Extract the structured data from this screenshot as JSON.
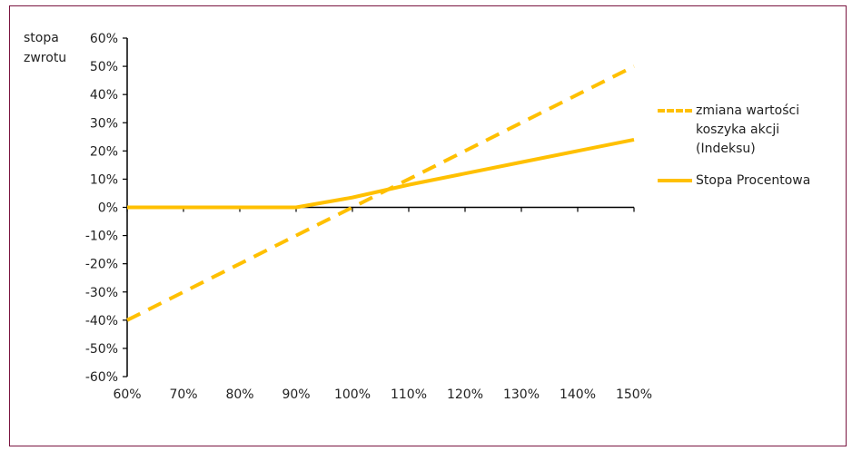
{
  "chart_data": {
    "type": "line",
    "ylabel": "stopa zwrotu",
    "ylabel_lines": [
      "stopa",
      "zwrotu"
    ],
    "xlabel": "",
    "x": [
      0.6,
      0.7,
      0.8,
      0.9,
      1.0,
      1.1,
      1.2,
      1.3,
      1.4,
      1.5
    ],
    "x_tick_labels": [
      "60%",
      "70%",
      "80%",
      "90%",
      "100%",
      "110%",
      "120%",
      "130%",
      "140%",
      "150%"
    ],
    "y_tick_labels": [
      "60%",
      "50%",
      "40%",
      "30%",
      "20%",
      "10%",
      "0%",
      "-10%",
      "-20%",
      "-30%",
      "-40%",
      "-50%",
      "-60%"
    ],
    "y_ticks": [
      0.6,
      0.5,
      0.4,
      0.3,
      0.2,
      0.1,
      0.0,
      -0.1,
      -0.2,
      -0.3,
      -0.4,
      -0.5,
      -0.6
    ],
    "xlim": [
      0.6,
      1.5
    ],
    "ylim": [
      -0.6,
      0.6
    ],
    "grid": false,
    "legend_position": "right",
    "series": [
      {
        "name": "zmiana wartości koszyka akcji (Indeksu)",
        "name_lines": [
          "zmiana wartości",
          "koszyka akcji",
          "(Indeksu)"
        ],
        "style": "dashed",
        "color": "#ffc000",
        "x": [
          0.6,
          1.5
        ],
        "values": [
          -0.4,
          0.5
        ]
      },
      {
        "name": "Stopa Procentowa",
        "name_lines": [
          "Stopa Procentowa"
        ],
        "style": "solid",
        "color": "#ffc000",
        "x": [
          0.6,
          0.7,
          0.8,
          0.9,
          1.0,
          1.1,
          1.2,
          1.3,
          1.4,
          1.5
        ],
        "values": [
          0.0,
          0.0,
          0.0,
          0.0,
          0.035,
          0.08,
          0.12,
          0.16,
          0.2,
          0.24
        ]
      }
    ],
    "colors": {
      "axis": "#000000",
      "border": "#7a1540",
      "series": "#ffc000"
    }
  }
}
